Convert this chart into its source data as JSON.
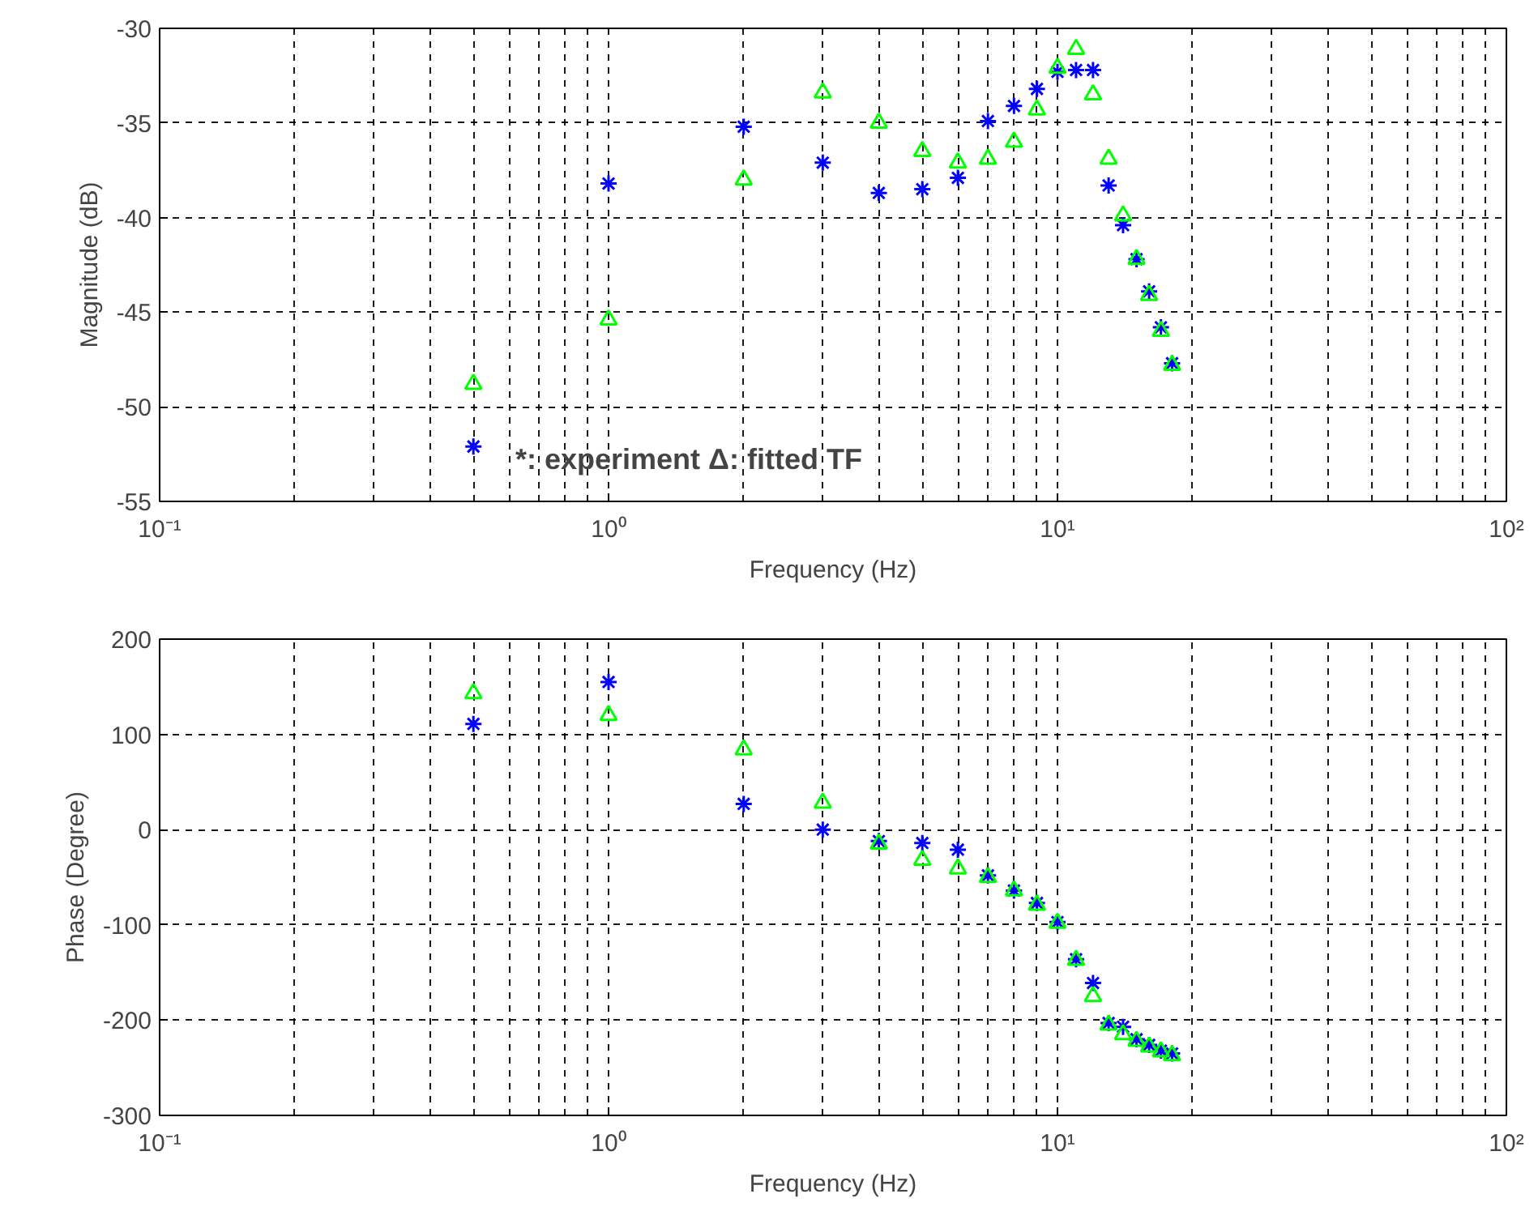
{
  "chart_data": [
    {
      "type": "scatter",
      "xlabel": "Frequency (Hz)",
      "ylabel": "Magnitude (dB)",
      "log": "x",
      "grid": true,
      "xlim": [
        0.1,
        100
      ],
      "xticks": [
        {
          "value": 0.1,
          "label": "10⁻¹"
        },
        {
          "value": 1,
          "label": "10⁰"
        },
        {
          "value": 10,
          "label": "10¹"
        },
        {
          "value": 100,
          "label": "10²"
        }
      ],
      "ylim": [
        -55,
        -30
      ],
      "yticks": [
        -55,
        -50,
        -45,
        -40,
        -35,
        -30
      ],
      "x": [
        0.5,
        1,
        2,
        3,
        4,
        5,
        6,
        7,
        8,
        9,
        10,
        11,
        12,
        13,
        14,
        15,
        16,
        17,
        18
      ],
      "series": [
        {
          "color": "#0000ff",
          "marker": "cross",
          "values": [
            -52.1,
            -38.2,
            -35.2,
            -37.1,
            -38.7,
            -38.5,
            -37.9,
            -34.9,
            -34.1,
            -33.2,
            -32.3,
            -32.2,
            -32.2,
            -38.3,
            -40.4,
            -42.2,
            -43.9,
            -45.8,
            -47.7
          ]
        },
        {
          "color": "#00ff00",
          "marker": "triangle",
          "values": [
            -48.8,
            -45.4,
            -38.0,
            -33.4,
            -35.0,
            -36.5,
            -37.1,
            -36.9,
            -36.0,
            -34.3,
            -32.1,
            -31.1,
            -33.5,
            -36.9,
            -39.9,
            -42.2,
            -44.1,
            -46.0,
            -47.8
          ]
        }
      ],
      "annotations": [
        "*: experiment     Δ: fitted TF"
      ]
    },
    {
      "type": "scatter",
      "xlabel": "Frequency (Hz)",
      "ylabel": "Phase (Degree)",
      "log": "x",
      "grid": true,
      "xlim": [
        0.1,
        100
      ],
      "xticks": [
        {
          "value": 0.1,
          "label": "10⁻¹"
        },
        {
          "value": 1,
          "label": "10⁰"
        },
        {
          "value": 10,
          "label": "10¹"
        },
        {
          "value": 100,
          "label": "10²"
        }
      ],
      "ylim": [
        -300,
        200
      ],
      "yticks": [
        -300,
        -200,
        -100,
        0,
        100,
        200
      ],
      "x": [
        0.5,
        1,
        2,
        3,
        4,
        5,
        6,
        7,
        8,
        9,
        10,
        11,
        12,
        13,
        14,
        15,
        16,
        17,
        18
      ],
      "series": [
        {
          "color": "#0000ff",
          "marker": "cross",
          "values": [
            111,
            155,
            27,
            0,
            -12,
            -14,
            -21,
            -48,
            -64,
            -77,
            -97,
            -136,
            -161,
            -203,
            -207,
            -220,
            -226,
            -232,
            -235
          ]
        },
        {
          "color": "#00ff00",
          "marker": "triangle",
          "values": [
            143,
            120,
            84,
            28,
            -15,
            -32,
            -41,
            -50,
            -64,
            -79,
            -98,
            -137,
            -175,
            -205,
            -215,
            -222,
            -228,
            -233,
            -237
          ]
        }
      ]
    }
  ]
}
